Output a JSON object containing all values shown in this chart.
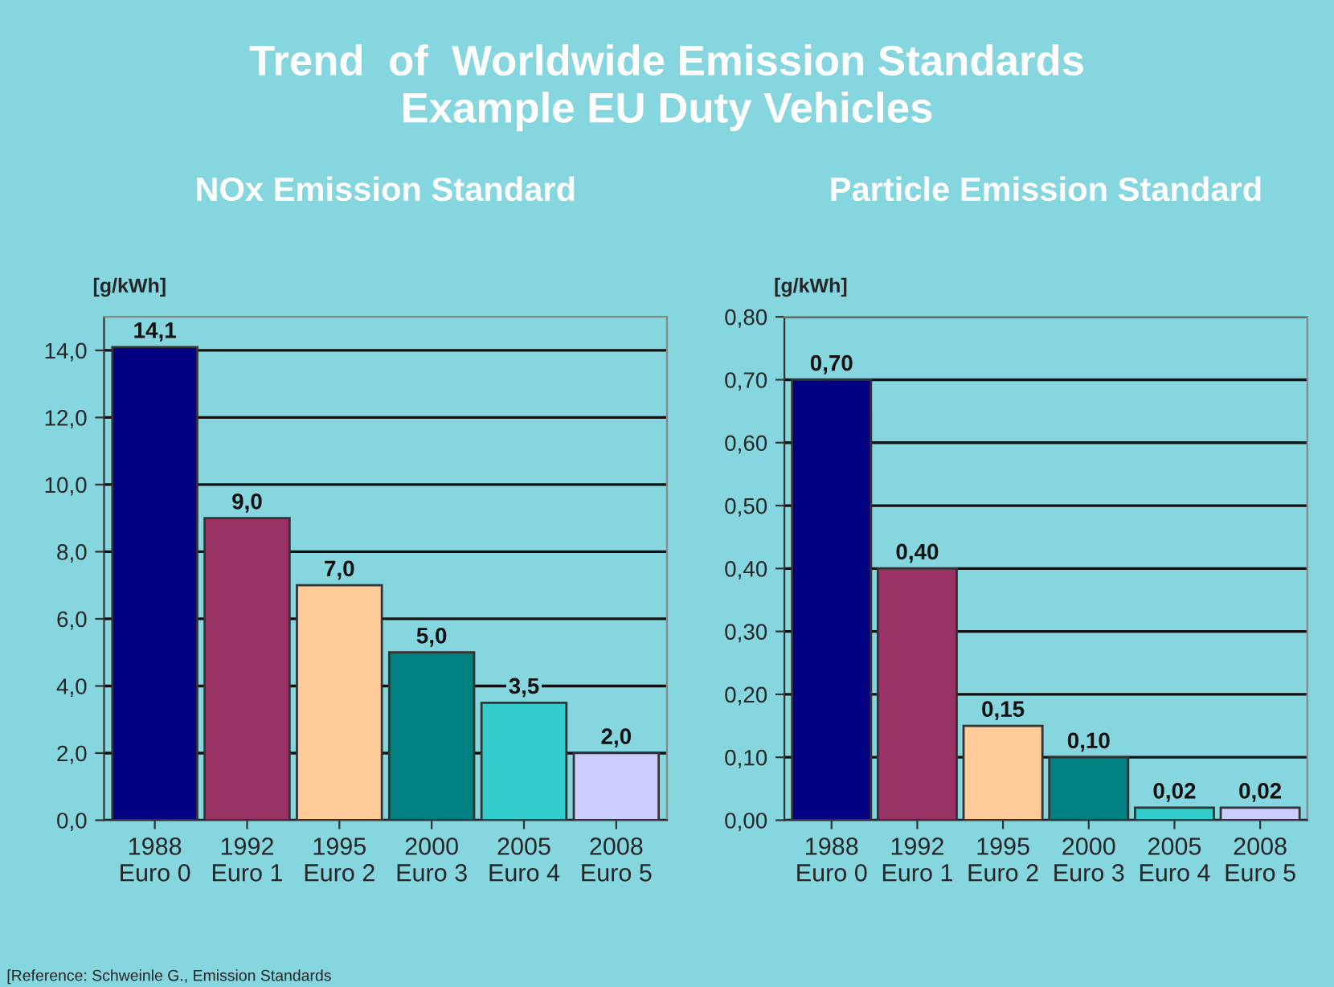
{
  "chart_data": [
    {
      "type": "bar",
      "title": "NOx Emission Standard",
      "ylabel": "[g/kWh]",
      "annotations": [
        "Trend  of  Worldwide Emission Standards\nExample EU Duty Vehicles",
        "[Reference: Schweinle G., Emission Standards"
      ],
      "categories": [
        "1988\nEuro 0",
        "1992\nEuro 1",
        "1995\nEuro 2",
        "2000\nEuro 3",
        "2005\nEuro 4",
        "2008\nEuro 5"
      ],
      "values": [
        14.1,
        9.0,
        7.0,
        5.0,
        3.5,
        2.0
      ],
      "value_labels": [
        "14,1",
        "9,0",
        "7,0",
        "5,0",
        "3,5",
        "2,0"
      ],
      "colors": [
        "#000080",
        "#993366",
        "#ffcc99",
        "#008080",
        "#33cccc",
        "#ccccff"
      ],
      "ylim": [
        0,
        15
      ],
      "yticks": [
        {
          "value": 0,
          "label": "0,0"
        },
        {
          "value": 2,
          "label": "2,0"
        },
        {
          "value": 4,
          "label": "4,0"
        },
        {
          "value": 6,
          "label": "6,0"
        },
        {
          "value": 8,
          "label": "8,0"
        },
        {
          "value": 10,
          "label": "10,0"
        },
        {
          "value": 12,
          "label": "12,0"
        },
        {
          "value": 14,
          "label": "14,0"
        }
      ],
      "grid": "y",
      "legend": false
    },
    {
      "type": "bar",
      "title": "Particle Emission Standard",
      "ylabel": "[g/kWh]",
      "categories": [
        "1988\nEuro 0",
        "1992\nEuro 1",
        "1995\nEuro 2",
        "2000\nEuro 3",
        "2005\nEuro 4",
        "2008\nEuro 5"
      ],
      "values": [
        0.7,
        0.4,
        0.15,
        0.1,
        0.02,
        0.02
      ],
      "value_labels": [
        "0,70",
        "0,40",
        "0,15",
        "0,10",
        "0,02",
        "0,02"
      ],
      "colors": [
        "#000080",
        "#993366",
        "#ffcc99",
        "#008080",
        "#33cccc",
        "#ccccff"
      ],
      "ylim": [
        0,
        0.8
      ],
      "yticks": [
        {
          "value": 0,
          "label": "0,00"
        },
        {
          "value": 0.1,
          "label": "0,10"
        },
        {
          "value": 0.2,
          "label": "0,20"
        },
        {
          "value": 0.3,
          "label": "0,30"
        },
        {
          "value": 0.4,
          "label": "0,40"
        },
        {
          "value": 0.5,
          "label": "0,50"
        },
        {
          "value": 0.6,
          "label": "0,60"
        },
        {
          "value": 0.7,
          "label": "0,70"
        },
        {
          "value": 0.8,
          "label": "0,80"
        }
      ],
      "grid": "y",
      "legend": false
    }
  ]
}
